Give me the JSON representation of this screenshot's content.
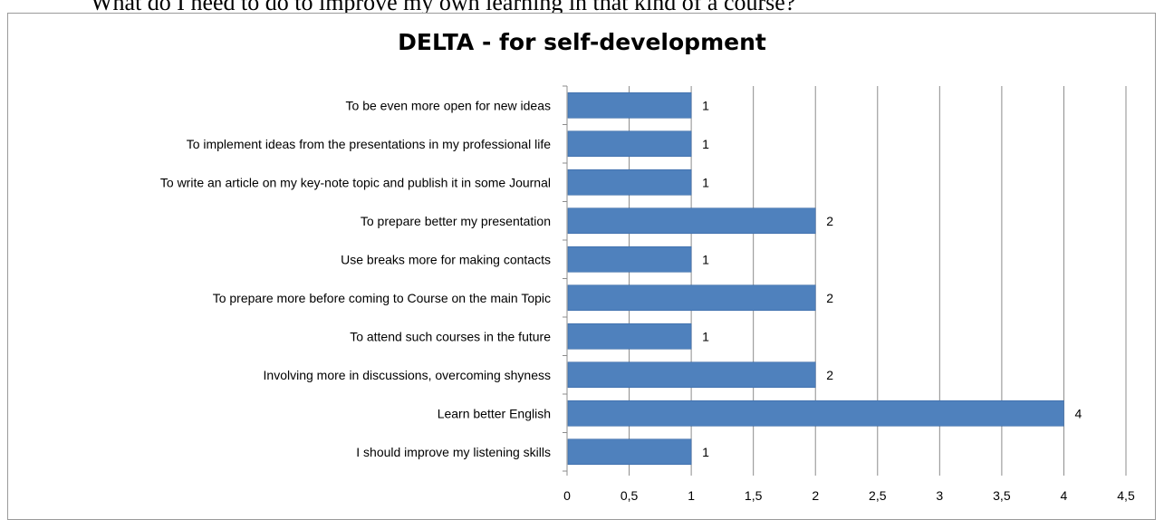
{
  "page": {
    "heading": "What do I need to do to improve my own learning in that kind of a course?"
  },
  "chart_data": {
    "type": "bar",
    "orientation": "horizontal",
    "title": "DELTA - for self-development",
    "xlabel": "",
    "ylabel": "",
    "xlim": [
      0,
      4.5
    ],
    "ticks": [
      0,
      0.5,
      1,
      1.5,
      2,
      2.5,
      3,
      3.5,
      4,
      4.5
    ],
    "tick_labels": [
      "0",
      "0,5",
      "1",
      "1,5",
      "2",
      "2,5",
      "3",
      "3,5",
      "4",
      "4,5"
    ],
    "grid": true,
    "legend": "none",
    "bar_color": "#4f81bd",
    "categories": [
      "To be even more open for new ideas",
      "To implement ideas from the presentations in my professional life",
      "To write an article on my key-note topic and publish it in some Journal",
      "To prepare better my presentation",
      "Use breaks more for making contacts",
      "To prepare more before coming to Course on the main Topic",
      "To attend such courses in the future",
      "Involving more in discussions, overcoming shyness",
      "Learn better English",
      "I should improve my listening skills"
    ],
    "values": [
      1,
      1,
      1,
      2,
      1,
      2,
      1,
      2,
      4,
      1
    ]
  }
}
